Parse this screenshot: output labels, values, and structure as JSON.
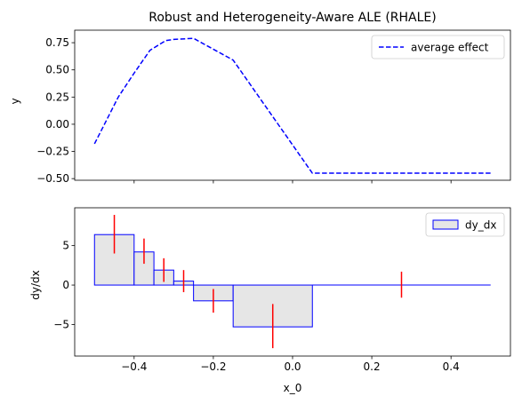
{
  "chart_data": [
    {
      "type": "line",
      "title": "Robust and Heterogeneity-Aware ALE (RHALE)",
      "xlabel": "",
      "ylabel": "y",
      "xlim": [
        -0.55,
        0.55
      ],
      "ylim": [
        -0.515,
        0.865
      ],
      "grid": false,
      "legend": {
        "placement": "top-right",
        "entries": [
          {
            "label": "average effect",
            "style": "dashed",
            "color": "#0000ff"
          }
        ]
      },
      "x_ticks": [
        -0.4,
        -0.2,
        0.0,
        0.2,
        0.4
      ],
      "x_tick_labels_visible": false,
      "y_ticks": [
        -0.5,
        -0.25,
        0.0,
        0.25,
        0.5,
        0.75
      ],
      "y_tick_labels": [
        "−0.50",
        "−0.25",
        "0.00",
        "0.25",
        "0.50",
        "0.75"
      ],
      "series": [
        {
          "name": "average effect",
          "color": "#0000ff",
          "line_style": "dashed",
          "x": [
            -0.5,
            -0.44,
            -0.4,
            -0.36,
            -0.32,
            -0.3,
            -0.25,
            -0.15,
            0.05,
            0.5
          ],
          "y": [
            -0.18,
            0.25,
            0.47,
            0.68,
            0.77,
            0.78,
            0.79,
            0.59,
            -0.45,
            -0.45
          ]
        }
      ]
    },
    {
      "type": "bar",
      "title": "",
      "xlabel": "x_0",
      "ylabel": "dy/dx",
      "xlim": [
        -0.55,
        0.55
      ],
      "ylim": [
        -9.0,
        9.8
      ],
      "grid": false,
      "legend": {
        "placement": "top-right",
        "entries": [
          {
            "label": "dy_dx",
            "fill": "#e6e6e6",
            "edge": "#0000ff"
          }
        ]
      },
      "x_ticks": [
        -0.4,
        -0.2,
        0.0,
        0.2,
        0.4
      ],
      "x_tick_labels": [
        "−0.4",
        "−0.2",
        "0.0",
        "0.2",
        "0.4"
      ],
      "y_ticks": [
        -5,
        0,
        5
      ],
      "y_tick_labels": [
        "−5",
        "0",
        "5"
      ],
      "bins": [
        {
          "x_start": -0.5,
          "x_end": -0.4,
          "value": 6.4,
          "err_center": -0.45,
          "err_low": 4.0,
          "err_high": 8.9
        },
        {
          "x_start": -0.4,
          "x_end": -0.35,
          "value": 4.2,
          "err_center": -0.375,
          "err_low": 2.7,
          "err_high": 5.9
        },
        {
          "x_start": -0.35,
          "x_end": -0.3,
          "value": 1.9,
          "err_center": -0.325,
          "err_low": 0.4,
          "err_high": 3.4
        },
        {
          "x_start": -0.3,
          "x_end": -0.25,
          "value": 0.5,
          "err_center": -0.275,
          "err_low": -0.9,
          "err_high": 1.9
        },
        {
          "x_start": -0.25,
          "x_end": -0.15,
          "value": -2.0,
          "err_center": -0.2,
          "err_low": -3.5,
          "err_high": -0.5
        },
        {
          "x_start": -0.15,
          "x_end": 0.05,
          "value": -5.3,
          "err_center": -0.05,
          "err_low": -8.0,
          "err_high": -2.4
        },
        {
          "x_start": 0.05,
          "x_end": 0.5,
          "value": 0.0,
          "err_center": 0.275,
          "err_low": -1.6,
          "err_high": 1.7
        }
      ],
      "colors": {
        "bar_fill": "#e6e6e6",
        "bar_edge": "#0000ff",
        "error_bar": "#ff0000"
      }
    }
  ]
}
